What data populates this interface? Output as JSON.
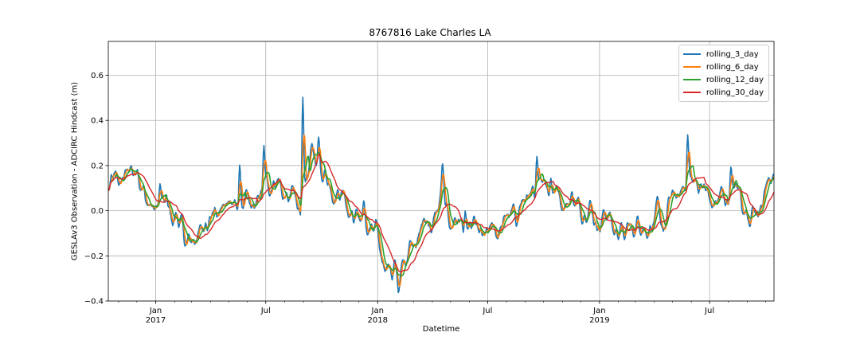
{
  "chart_data": {
    "type": "line",
    "title": "8767816 Lake Charles LA",
    "xlabel": "Datetime",
    "ylabel": "GESLAv3 Observation - ADCIRC Hindcast (m)",
    "x_range": [
      "2016-10-15",
      "2019-10-15"
    ],
    "ylim": [
      -0.4,
      0.75
    ],
    "y_ticks": [
      -0.4,
      -0.2,
      0.0,
      0.2,
      0.4,
      0.6
    ],
    "y_tick_labels": [
      "−0.4",
      "−0.2",
      "0.0",
      "0.2",
      "0.4",
      "0.6"
    ],
    "x_ticks": [
      {
        "date": "2017-01-01",
        "label": "Jan",
        "sublabel": "2017"
      },
      {
        "date": "2017-07-01",
        "label": "Jul",
        "sublabel": ""
      },
      {
        "date": "2018-01-01",
        "label": "Jan",
        "sublabel": "2018"
      },
      {
        "date": "2018-07-01",
        "label": "Jul",
        "sublabel": ""
      },
      {
        "date": "2019-01-01",
        "label": "Jan",
        "sublabel": "2019"
      },
      {
        "date": "2019-07-01",
        "label": "Jul",
        "sublabel": ""
      }
    ],
    "grid": true,
    "legend_position": "top-right",
    "series": [
      {
        "name": "rolling_3_day",
        "color": "#1f77b4"
      },
      {
        "name": "rolling_6_day",
        "color": "#ff7f0e"
      },
      {
        "name": "rolling_12_day",
        "color": "#2ca02c"
      },
      {
        "name": "rolling_30_day",
        "color": "#d62728"
      }
    ],
    "signal": {
      "dates": [
        "2016-10-15",
        "2016-10-25",
        "2016-11-05",
        "2016-11-15",
        "2016-11-25",
        "2016-12-05",
        "2016-12-15",
        "2016-12-25",
        "2017-01-05",
        "2017-01-20",
        "2017-02-05",
        "2017-02-20",
        "2017-03-05",
        "2017-03-20",
        "2017-04-05",
        "2017-04-20",
        "2017-05-05",
        "2017-05-20",
        "2017-06-05",
        "2017-06-20",
        "2017-07-05",
        "2017-07-20",
        "2017-08-05",
        "2017-08-20",
        "2017-08-30",
        "2017-09-05",
        "2017-09-15",
        "2017-10-01",
        "2017-10-15",
        "2017-11-01",
        "2017-11-15",
        "2017-12-01",
        "2017-12-15",
        "2018-01-01",
        "2018-01-10",
        "2018-01-20",
        "2018-02-01",
        "2018-02-15",
        "2018-03-01",
        "2018-03-15",
        "2018-04-01",
        "2018-04-15",
        "2018-05-01",
        "2018-05-15",
        "2018-06-01",
        "2018-06-15",
        "2018-07-01",
        "2018-07-15",
        "2018-08-01",
        "2018-08-15",
        "2018-09-01",
        "2018-09-15",
        "2018-10-01",
        "2018-10-15",
        "2018-11-01",
        "2018-11-15",
        "2018-12-01",
        "2018-12-15",
        "2019-01-01",
        "2019-01-15",
        "2019-02-01",
        "2019-02-15",
        "2019-03-01",
        "2019-03-15",
        "2019-04-01",
        "2019-04-15",
        "2019-05-01",
        "2019-05-15",
        "2019-06-01",
        "2019-06-15",
        "2019-07-01",
        "2019-07-15",
        "2019-08-01",
        "2019-08-15",
        "2019-09-01",
        "2019-09-15",
        "2019-10-01",
        "2019-10-15"
      ],
      "values": [
        0.08,
        0.12,
        0.15,
        0.17,
        0.16,
        0.12,
        0.06,
        0.04,
        0.02,
        0.0,
        -0.05,
        -0.13,
        -0.13,
        -0.06,
        -0.02,
        0.02,
        0.04,
        0.01,
        0.02,
        0.03,
        0.14,
        0.12,
        0.06,
        0.03,
        0.02,
        0.07,
        0.28,
        0.15,
        0.12,
        0.08,
        0.03,
        -0.05,
        -0.06,
        -0.15,
        -0.2,
        -0.25,
        -0.28,
        -0.22,
        -0.1,
        -0.08,
        -0.04,
        0.04,
        -0.04,
        -0.06,
        -0.1,
        -0.1,
        -0.12,
        -0.07,
        -0.05,
        0.0,
        0.03,
        0.07,
        0.17,
        0.08,
        0.06,
        0.04,
        0.02,
        0.01,
        -0.05,
        -0.02,
        -0.1,
        -0.05,
        -0.08,
        -0.05,
        -0.06,
        -0.06,
        0.05,
        0.09,
        0.14,
        0.12,
        0.04,
        0.04,
        0.06,
        0.08,
        0.0,
        -0.03,
        0.08,
        0.15
      ]
    },
    "spikes": [
      {
        "date": "2016-12-02",
        "height": 0.07
      },
      {
        "date": "2017-01-07",
        "height": 0.1
      },
      {
        "date": "2017-01-18",
        "height": 0.06
      },
      {
        "date": "2017-03-23",
        "height": 0.06
      },
      {
        "date": "2017-05-18",
        "height": 0.22
      },
      {
        "date": "2017-06-27",
        "height": 0.22
      },
      {
        "date": "2017-08-30",
        "height": 0.62
      },
      {
        "date": "2017-09-25",
        "height": 0.14
      },
      {
        "date": "2017-12-08",
        "height": 0.1
      },
      {
        "date": "2018-04-17",
        "height": 0.16
      },
      {
        "date": "2018-05-24",
        "height": 0.1
      },
      {
        "date": "2018-09-19",
        "height": 0.22
      },
      {
        "date": "2018-10-12",
        "height": 0.08
      },
      {
        "date": "2019-04-06",
        "height": 0.06
      },
      {
        "date": "2019-05-25",
        "height": 0.25
      },
      {
        "date": "2019-08-04",
        "height": 0.22
      },
      {
        "date": "2019-09-22",
        "height": 0.06
      }
    ],
    "dips": [
      {
        "date": "2017-03-05",
        "depth": 0.05
      },
      {
        "date": "2018-01-24",
        "depth": 0.08
      },
      {
        "date": "2018-02-03",
        "depth": 0.06
      },
      {
        "date": "2019-02-10",
        "depth": 0.14
      }
    ]
  }
}
